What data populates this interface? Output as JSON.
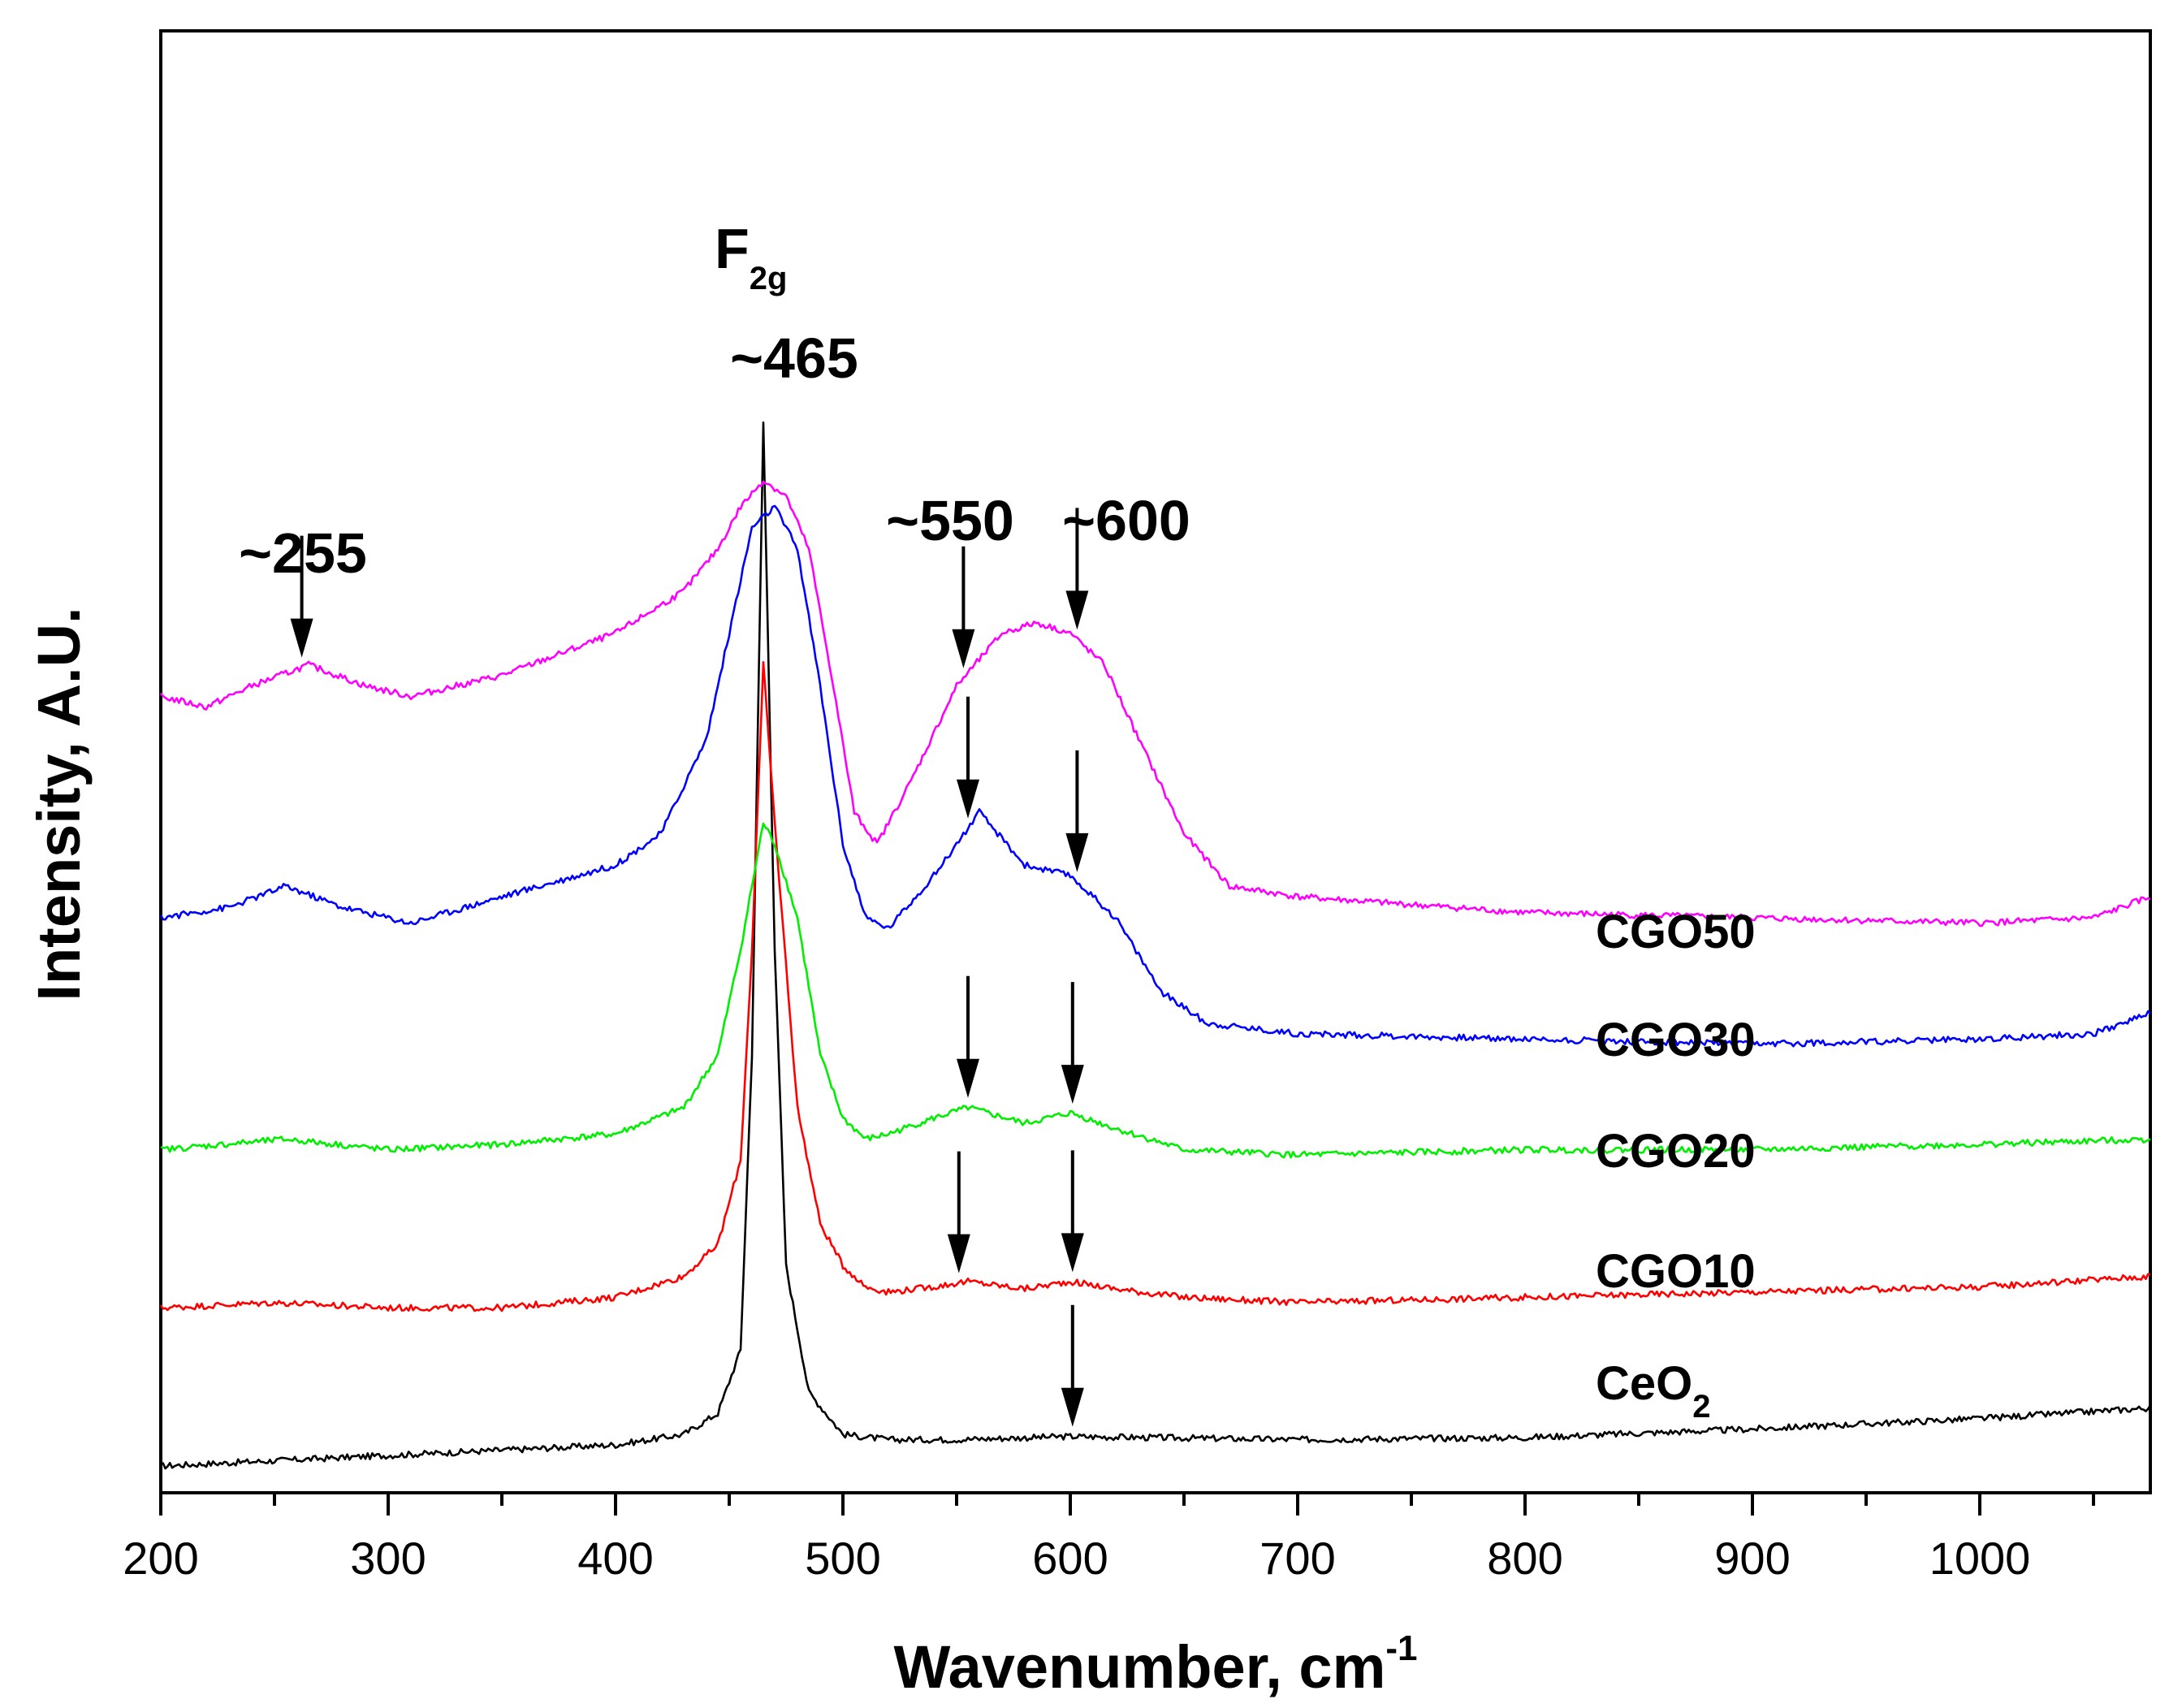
{
  "chart_data": {
    "type": "line",
    "xlabel": "Wavenumber, cm",
    "xlabel_superscript": "-1",
    "ylabel": "Intensity, A.U.",
    "xlim": [
      200,
      1075
    ],
    "ylim": [
      0,
      100
    ],
    "x_ticks": [
      200,
      300,
      400,
      500,
      600,
      700,
      800,
      900,
      1000
    ],
    "grid": false,
    "colors": {
      "CeO2": "#000000",
      "CGO10": "#ff0000",
      "CGO20": "#00ee00",
      "CGO30": "#0000ff",
      "CGO50": "#ff00ff"
    },
    "series": [
      {
        "id": "CeO2",
        "name": "CeO",
        "name_sub": "2",
        "x": [
          200,
          300,
          400,
          430,
          445,
          455,
          460,
          465,
          470,
          475,
          485,
          500,
          520,
          550,
          600,
          700,
          800,
          900,
          1000,
          1075
        ],
        "values": [
          1,
          2,
          3,
          4,
          6,
          12,
          40,
          100,
          50,
          20,
          8,
          4,
          3.5,
          3.5,
          3.8,
          3.5,
          3.7,
          4.5,
          5.5,
          6.5
        ]
      },
      {
        "id": "CGO10",
        "name": "CGO10",
        "x": [
          200,
          250,
          300,
          350,
          400,
          430,
          445,
          455,
          460,
          465,
          470,
          480,
          490,
          500,
          510,
          520,
          540,
          555,
          580,
          600,
          620,
          650,
          700,
          800,
          900,
          1000,
          1075
        ],
        "values": [
          16,
          16.5,
          16,
          16,
          17,
          19,
          22,
          30,
          50,
          77,
          62,
          35,
          24,
          20,
          18,
          17.5,
          18,
          18.5,
          17.8,
          18.5,
          17.8,
          17,
          16.5,
          17,
          17.5,
          18,
          19
        ]
      },
      {
        "id": "CGO20",
        "name": "CGO20",
        "x": [
          200,
          255,
          300,
          350,
          400,
          430,
          445,
          455,
          465,
          470,
          480,
          490,
          500,
          510,
          520,
          540,
          555,
          580,
          600,
          620,
          650,
          700,
          800,
          900,
          1000,
          1075
        ],
        "values": [
          31,
          32,
          31,
          31.5,
          32.5,
          35,
          40,
          50,
          62,
          60,
          53,
          40,
          34,
          32,
          32.5,
          34,
          35,
          33.5,
          34.5,
          33,
          31,
          30.5,
          31,
          31,
          31.5,
          32
        ]
      },
      {
        "id": "CGO30",
        "name": "CGO30",
        "x": [
          200,
          230,
          255,
          280,
          310,
          350,
          400,
          420,
          440,
          450,
          460,
          470,
          480,
          490,
          500,
          510,
          520,
          540,
          560,
          580,
          600,
          620,
          640,
          660,
          700,
          800,
          900,
          1000,
          1050,
          1075
        ],
        "values": [
          53,
          54,
          56,
          54,
          52.5,
          55,
          58,
          61,
          70,
          80,
          90,
          92,
          88,
          75,
          60,
          53,
          52,
          57,
          63,
          58,
          57,
          53,
          46,
          43,
          42,
          41.5,
          41,
          41.5,
          42,
          44
        ]
      },
      {
        "id": "CGO50",
        "name": "CGO50",
        "x": [
          200,
          220,
          240,
          265,
          290,
          310,
          350,
          400,
          430,
          445,
          455,
          465,
          475,
          485,
          495,
          505,
          515,
          530,
          550,
          570,
          585,
          600,
          615,
          630,
          650,
          670,
          700,
          800,
          900,
          1000,
          1050,
          1075
        ],
        "values": [
          74,
          73,
          75,
          77,
          75,
          74,
          76,
          80,
          84,
          88,
          92,
          94.5,
          93,
          88,
          76,
          63,
          60,
          66,
          75,
          80,
          81,
          80,
          77,
          70,
          61,
          56,
          55,
          53.5,
          53,
          52.5,
          53,
          55
        ]
      }
    ],
    "annotations": [
      {
        "label": "F",
        "sub": "2g",
        "x": 465
      },
      {
        "label": "~465",
        "x": 465
      },
      {
        "label": "~255",
        "x": 262
      },
      {
        "label": "~550",
        "x": 553
      },
      {
        "label": "~600",
        "x": 603
      }
    ],
    "arrows": [
      {
        "x": 262,
        "series": "CGO50"
      },
      {
        "x": 553,
        "series": "CGO50"
      },
      {
        "x": 603,
        "series": "CGO50"
      },
      {
        "x": 555,
        "series": "CGO30"
      },
      {
        "x": 603,
        "series": "CGO30"
      },
      {
        "x": 555,
        "series": "CGO20"
      },
      {
        "x": 601,
        "series": "CGO20"
      },
      {
        "x": 551,
        "series": "CGO10"
      },
      {
        "x": 601,
        "series": "CGO10"
      },
      {
        "x": 601,
        "series": "CeO2"
      }
    ]
  }
}
